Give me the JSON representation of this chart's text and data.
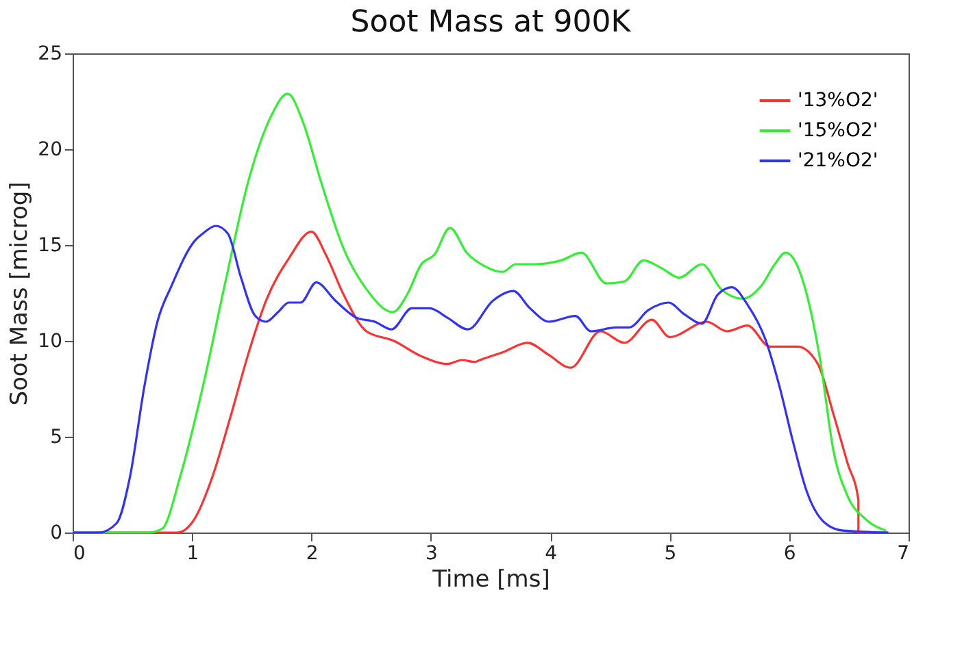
{
  "chart_data": {
    "type": "line",
    "title": "Soot Mass at 900K",
    "xlabel": "Time [ms]",
    "ylabel": "Soot Mass [microg]",
    "xlim": [
      0,
      7
    ],
    "xticks": [
      0,
      1,
      2,
      3,
      4,
      5,
      6,
      7
    ],
    "ylim": [
      0,
      25
    ],
    "yticks": [
      0,
      5,
      10,
      15,
      20,
      25
    ],
    "grid": false,
    "legend": "top right",
    "marker": "none",
    "line_style": "solid",
    "series": [
      {
        "name": "'13%O2'",
        "color": "#ff3030",
        "x": [
          0,
          0.88,
          1.02,
          1.17,
          1.32,
          1.47,
          1.62,
          1.81,
          2.0,
          2.12,
          2.27,
          2.46,
          2.69,
          2.92,
          3.14,
          3.26,
          3.37,
          3.41,
          3.6,
          3.81,
          3.98,
          4.17,
          4.42,
          4.62,
          4.85,
          5.0,
          5.31,
          5.48,
          5.65,
          5.84,
          6.07,
          6.24,
          6.37,
          6.49,
          6.58,
          6.58,
          6.83
        ],
        "values": [
          0,
          0,
          0.7,
          2.9,
          6,
          9.3,
          12.1,
          14.3,
          15.7,
          14.5,
          12.4,
          10.5,
          10,
          9.2,
          8.8,
          9.0,
          8.9,
          9.0,
          9.4,
          9.9,
          9.3,
          8.6,
          10.5,
          9.9,
          11.1,
          10.2,
          11,
          10.5,
          10.8,
          9.7,
          9.7,
          8.8,
          6.2,
          3.6,
          1.7,
          0,
          0
        ]
      },
      {
        "name": "'15%O2'",
        "color": "#30f030",
        "x": [
          0,
          0.64,
          0.75,
          0.9,
          1.09,
          1.28,
          1.47,
          1.66,
          1.8,
          1.93,
          2.08,
          2.27,
          2.46,
          2.68,
          2.8,
          2.92,
          3.03,
          3.16,
          3.3,
          3.45,
          3.6,
          3.71,
          3.87,
          4.09,
          4.26,
          4.47,
          4.62,
          4.78,
          4.93,
          5.08,
          5.27,
          5.43,
          5.61,
          5.77,
          5.88,
          5.97,
          6.07,
          6.14,
          6.26,
          6.37,
          6.49,
          6.64,
          6.81
        ],
        "values": [
          0,
          0,
          0.2,
          2.9,
          7.6,
          13.1,
          18.3,
          21.7,
          22.9,
          21.4,
          18.3,
          14.8,
          12.7,
          11.5,
          12.4,
          14.0,
          14.5,
          15.9,
          14.6,
          13.9,
          13.6,
          14,
          14,
          14.2,
          14.6,
          13,
          13.1,
          14.2,
          13.8,
          13.3,
          14,
          12.7,
          12.2,
          12.9,
          14,
          14.6,
          13.9,
          12.6,
          9,
          4.3,
          1.9,
          0.7,
          0.1
        ]
      },
      {
        "name": "'21%O2'",
        "color": "#3030ff",
        "x": [
          0,
          0.22,
          0.37,
          0.48,
          0.6,
          0.71,
          0.83,
          1.02,
          1.09,
          1.2,
          1.3,
          1.41,
          1.53,
          1.62,
          1.72,
          1.81,
          1.91,
          2.04,
          2.2,
          2.38,
          2.53,
          2.67,
          2.84,
          2.99,
          3.14,
          3.31,
          3.52,
          3.69,
          3.83,
          3.99,
          4.21,
          4.34,
          4.55,
          4.66,
          4.82,
          4.99,
          5.12,
          5.27,
          5.4,
          5.52,
          5.65,
          5.8,
          5.92,
          6.03,
          6.15,
          6.3,
          6.45,
          6.83
        ],
        "values": [
          0,
          0,
          0.5,
          2.9,
          7.6,
          11,
          12.9,
          15.2,
          15.6,
          16.0,
          15.6,
          13.3,
          11.3,
          11,
          11.5,
          12,
          12,
          13.05,
          12.1,
          11.2,
          11,
          10.6,
          11.7,
          11.7,
          11.2,
          10.6,
          12.1,
          12.6,
          11.7,
          11,
          11.3,
          10.5,
          10.7,
          10.7,
          11.6,
          12,
          11.4,
          10.9,
          12.4,
          12.8,
          11.9,
          10.1,
          7.6,
          4.8,
          2.1,
          0.5,
          0.1,
          0
        ]
      }
    ]
  }
}
